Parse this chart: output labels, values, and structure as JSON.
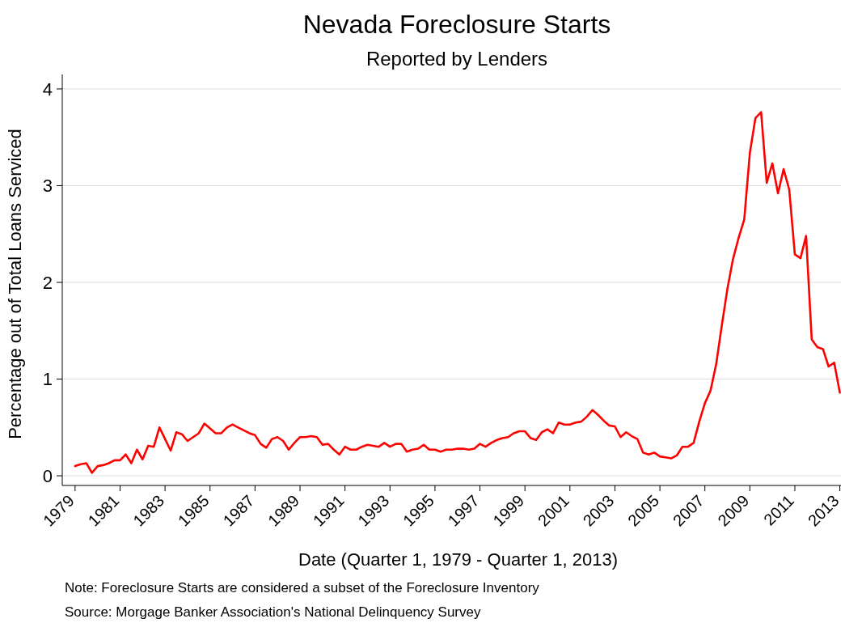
{
  "chart_data": {
    "type": "line",
    "title": "Nevada Foreclosure Starts",
    "subtitle": "Reported by Lenders",
    "xlabel": "Date (Quarter 1, 1979 - Quarter 1, 2013)",
    "ylabel": "Percentage out of Total Loans Serviced",
    "annotations": [
      "Note: Foreclosure Starts are considered a subset of the Foreclosure Inventory",
      "Source: Morgage Banker Association's National Delinquency Survey"
    ],
    "x": [
      1979,
      1979.25,
      1979.5,
      1979.75,
      1980,
      1980.25,
      1980.5,
      1980.75,
      1981,
      1981.25,
      1981.5,
      1981.75,
      1982,
      1982.25,
      1982.5,
      1982.75,
      1983,
      1983.25,
      1983.5,
      1983.75,
      1984,
      1984.25,
      1984.5,
      1984.75,
      1985,
      1985.25,
      1985.5,
      1985.75,
      1986,
      1986.25,
      1986.5,
      1986.75,
      1987,
      1987.25,
      1987.5,
      1987.75,
      1988,
      1988.25,
      1988.5,
      1988.75,
      1989,
      1989.25,
      1989.5,
      1989.75,
      1990,
      1990.25,
      1990.5,
      1990.75,
      1991,
      1991.25,
      1991.5,
      1991.75,
      1992,
      1992.25,
      1992.5,
      1992.75,
      1993,
      1993.25,
      1993.5,
      1993.75,
      1994,
      1994.25,
      1994.5,
      1994.75,
      1995,
      1995.25,
      1995.5,
      1995.75,
      1996,
      1996.25,
      1996.5,
      1996.75,
      1997,
      1997.25,
      1997.5,
      1997.75,
      1998,
      1998.25,
      1998.5,
      1998.75,
      1999,
      1999.25,
      1999.5,
      1999.75,
      2000,
      2000.25,
      2000.5,
      2000.75,
      2001,
      2001.25,
      2001.5,
      2001.75,
      2002,
      2002.25,
      2002.5,
      2002.75,
      2003,
      2003.25,
      2003.5,
      2003.75,
      2004,
      2004.25,
      2004.5,
      2004.75,
      2005,
      2005.25,
      2005.5,
      2005.75,
      2006,
      2006.25,
      2006.5,
      2006.75,
      2007,
      2007.25,
      2007.5,
      2007.75,
      2008,
      2008.25,
      2008.5,
      2008.75,
      2009,
      2009.25,
      2009.5,
      2009.75,
      2010,
      2010.25,
      2010.5,
      2010.75,
      2011,
      2011.25,
      2011.5,
      2011.75,
      2012,
      2012.25,
      2012.5,
      2012.75,
      2013
    ],
    "series": [
      {
        "color": "#ff0000",
        "values": [
          0.1,
          0.12,
          0.13,
          0.03,
          0.1,
          0.11,
          0.13,
          0.16,
          0.16,
          0.22,
          0.13,
          0.27,
          0.17,
          0.31,
          0.3,
          0.5,
          0.38,
          0.26,
          0.45,
          0.43,
          0.36,
          0.4,
          0.44,
          0.54,
          0.49,
          0.44,
          0.44,
          0.5,
          0.53,
          0.5,
          0.47,
          0.44,
          0.42,
          0.33,
          0.29,
          0.38,
          0.4,
          0.36,
          0.27,
          0.34,
          0.4,
          0.4,
          0.41,
          0.4,
          0.32,
          0.33,
          0.27,
          0.22,
          0.3,
          0.27,
          0.27,
          0.3,
          0.32,
          0.31,
          0.3,
          0.34,
          0.3,
          0.33,
          0.33,
          0.25,
          0.27,
          0.28,
          0.32,
          0.27,
          0.27,
          0.25,
          0.27,
          0.27,
          0.28,
          0.28,
          0.27,
          0.28,
          0.33,
          0.3,
          0.34,
          0.37,
          0.39,
          0.4,
          0.44,
          0.46,
          0.46,
          0.39,
          0.37,
          0.45,
          0.48,
          0.44,
          0.55,
          0.53,
          0.53,
          0.55,
          0.56,
          0.61,
          0.68,
          0.63,
          0.57,
          0.52,
          0.51,
          0.4,
          0.45,
          0.41,
          0.38,
          0.24,
          0.22,
          0.24,
          0.2,
          0.19,
          0.18,
          0.21,
          0.3,
          0.3,
          0.34,
          0.56,
          0.75,
          0.88,
          1.15,
          1.55,
          1.93,
          2.24,
          2.46,
          2.65,
          3.34,
          3.7,
          3.76,
          3.03,
          3.23,
          2.92,
          3.17,
          2.96,
          2.29,
          2.25,
          2.48,
          1.41,
          1.33,
          1.31,
          1.13,
          1.17,
          0.86
        ]
      }
    ],
    "xlim": [
      1978.43,
      2013.05
    ],
    "xticks": [
      1979,
      1981,
      1983,
      1985,
      1987,
      1989,
      1991,
      1993,
      1995,
      1997,
      1999,
      2001,
      2003,
      2005,
      2007,
      2009,
      2011,
      2013
    ],
    "ylim": [
      -0.1,
      4.15
    ],
    "yticks": [
      0,
      1,
      2,
      3,
      4
    ],
    "grid": "y",
    "marker": "none",
    "line_style": "solid"
  }
}
